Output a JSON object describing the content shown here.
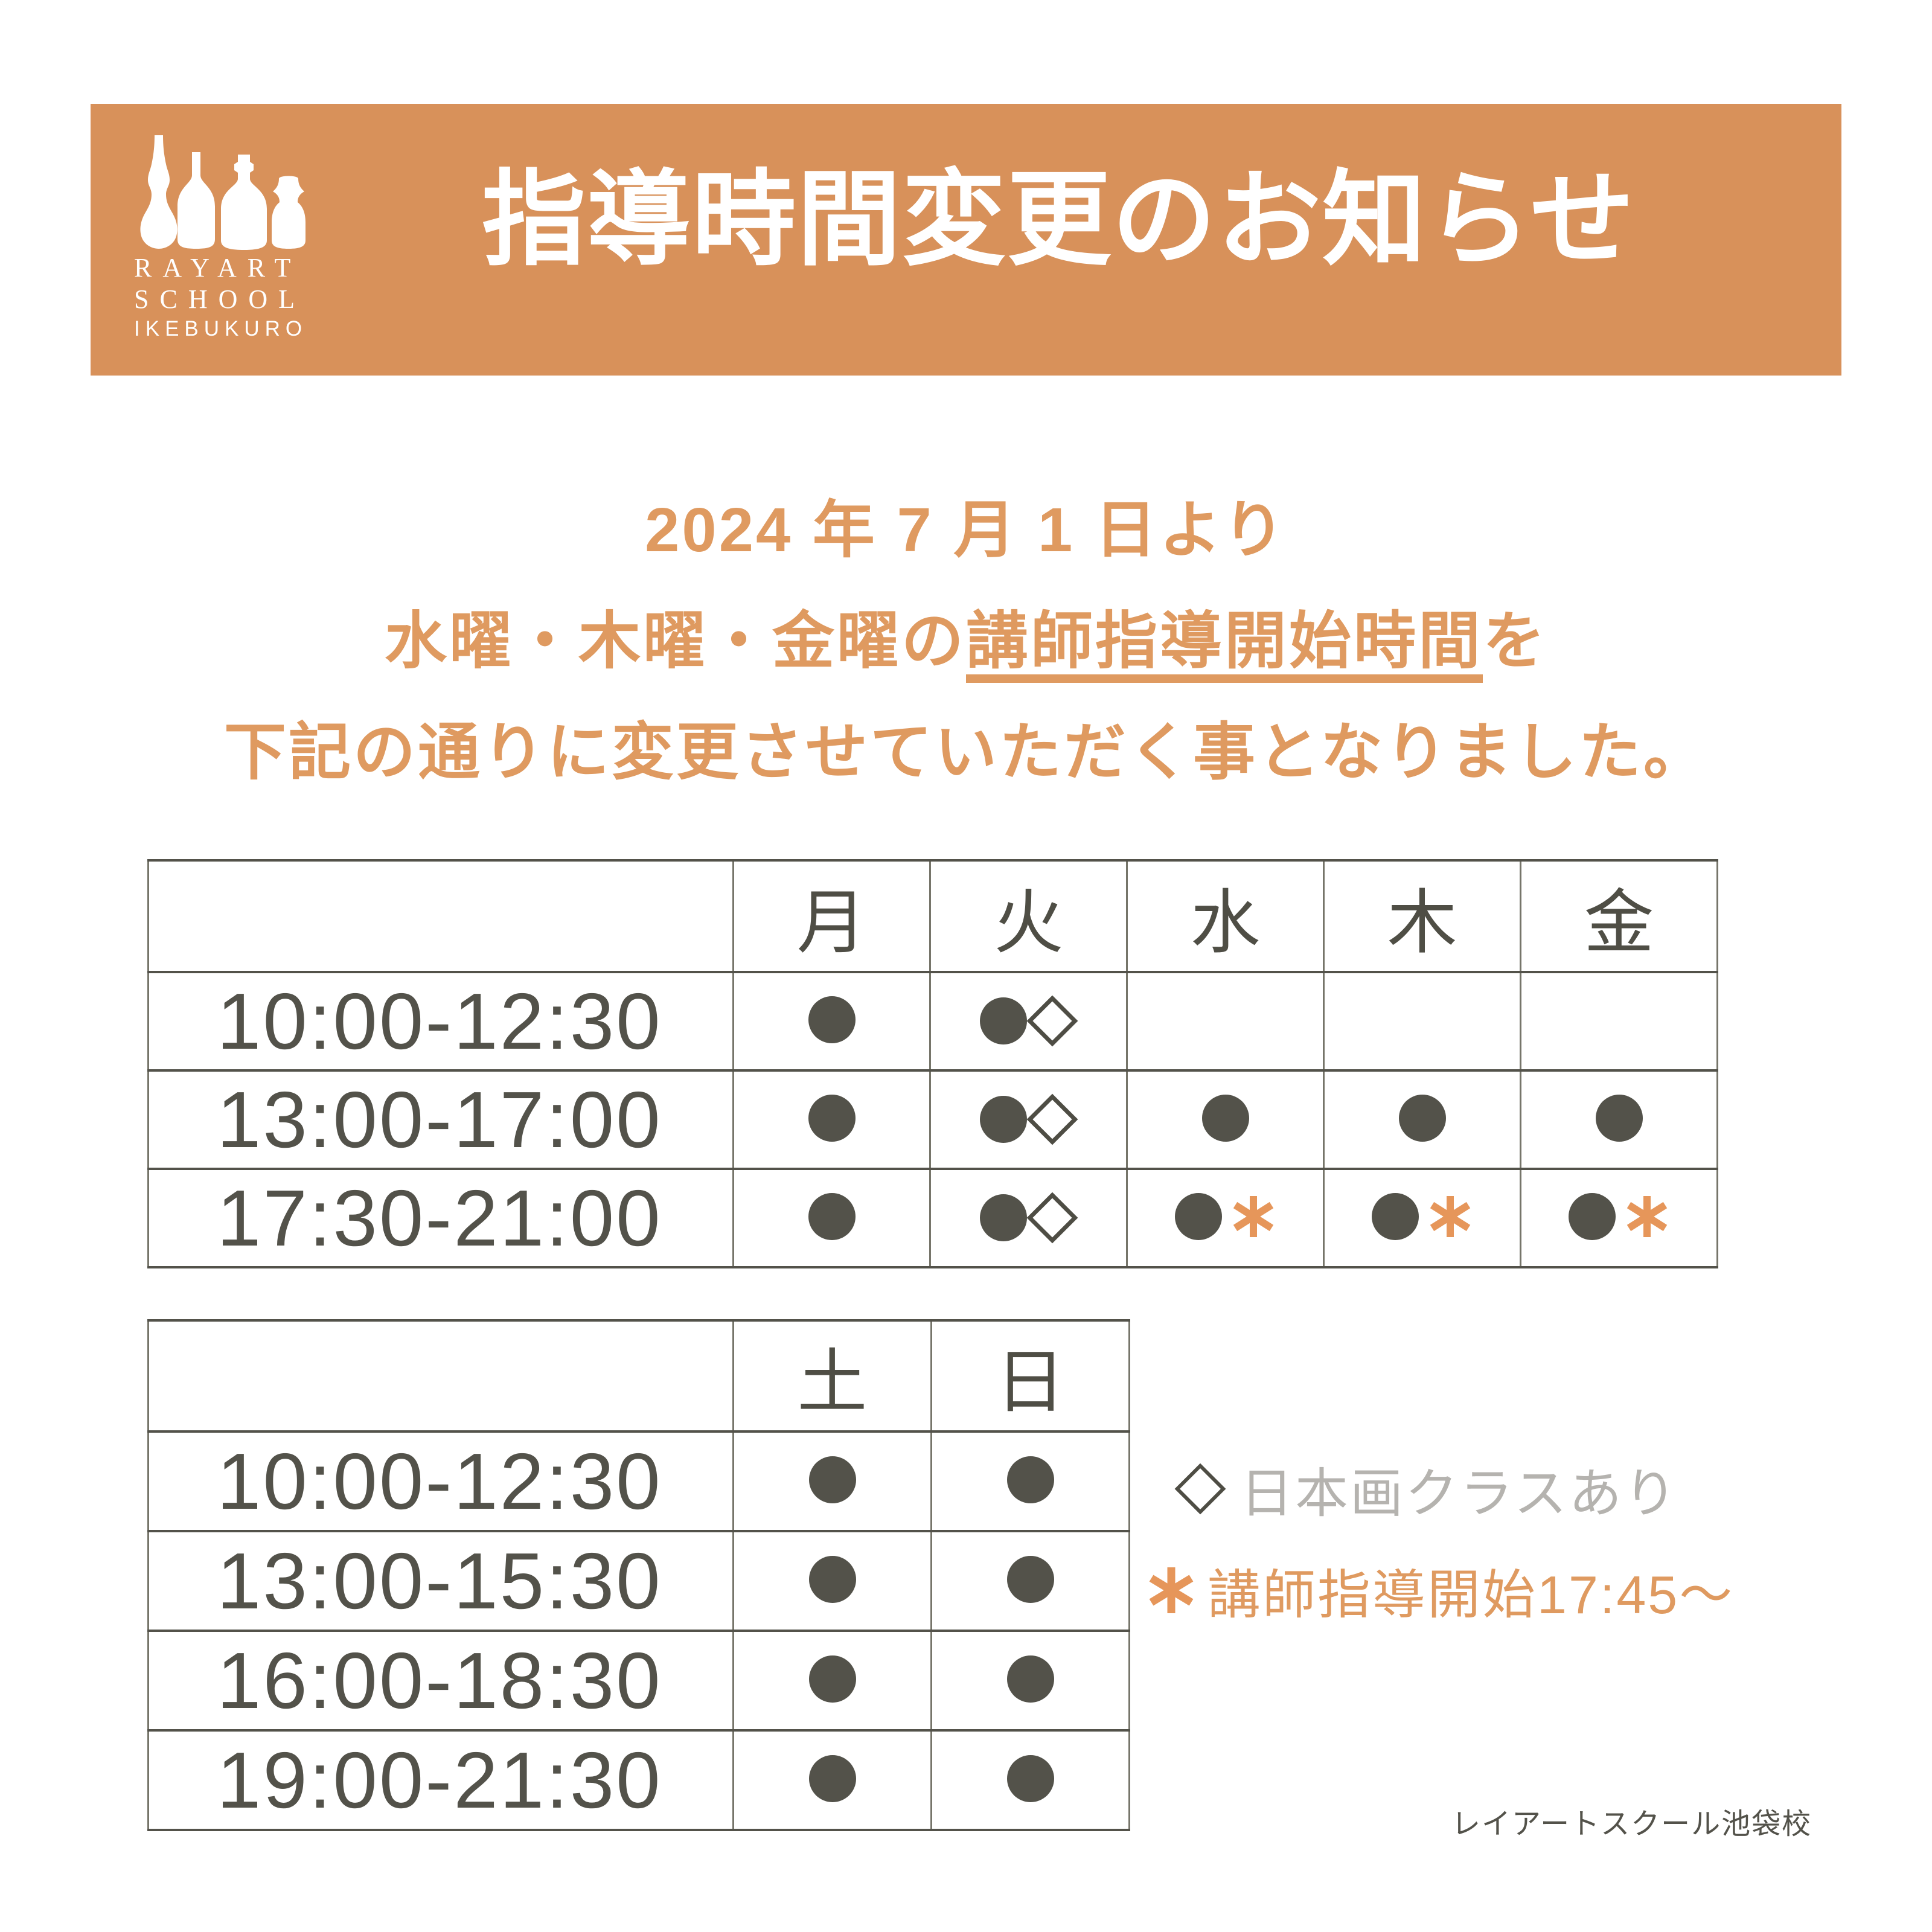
{
  "colors": {
    "banner_orange": "#D8915A",
    "text_orange": "#DF9A60",
    "star_orange": "#E6965A",
    "dark_olive": "#53524A",
    "day_olive": "#4F4E45",
    "legend_gray": "#B5B3AF"
  },
  "banner": {
    "title": "指導時間変更のお知らせ",
    "logo": {
      "name_line1": "RAYART",
      "name_line2": "SCHOOL",
      "name_line3": "IKEBUKURO"
    }
  },
  "intro": {
    "line1": "2024 年 7 月 1 日より",
    "line2_prefix": "水曜・木曜・金曜の",
    "line2_underlined": "講師指導開始時間",
    "line2_suffix": "を",
    "line3": "下記の通りに変更させていただく事となりました。"
  },
  "weekday_table": {
    "day_headers": [
      "月",
      "火",
      "水",
      "木",
      "金"
    ],
    "rows": [
      {
        "time": "10:00-12:30",
        "cells": [
          "dot",
          "dot diamond",
          "",
          "",
          ""
        ]
      },
      {
        "time": "13:00-17:00",
        "cells": [
          "dot",
          "dot diamond",
          "dot",
          "dot",
          "dot"
        ]
      },
      {
        "time": "17:30-21:00",
        "cells": [
          "dot",
          "dot diamond",
          "dot star",
          "dot star",
          "dot star"
        ]
      }
    ]
  },
  "weekend_table": {
    "day_headers": [
      "土",
      "日"
    ],
    "rows": [
      {
        "time": "10:00-12:30",
        "cells": [
          "dot",
          "dot"
        ]
      },
      {
        "time": "13:00-15:30",
        "cells": [
          "dot",
          "dot"
        ]
      },
      {
        "time": "16:00-18:30",
        "cells": [
          "dot",
          "dot"
        ]
      },
      {
        "time": "19:00-21:30",
        "cells": [
          "dot",
          "dot"
        ]
      }
    ]
  },
  "legend": {
    "diamond_note": "日本画クラスあり",
    "star_note": "講師指導開始17:45〜"
  },
  "footer": {
    "school_name": "レイアートスクール池袋校"
  }
}
